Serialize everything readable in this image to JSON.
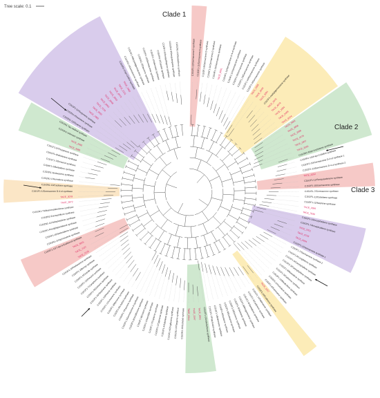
{
  "scale": {
    "label": "Tree scale: 0.1"
  },
  "colors": {
    "purple": "#d9ccec",
    "pink": "#f6c9c7",
    "green": "#cfe8cf",
    "orange": "#fbe6c6",
    "yellow": "#fcecb8",
    "highlight_text": "#e0245e",
    "normal_text": "#222222",
    "branch": "#555555"
  },
  "clade_labels": [
    "Clade 1",
    "Clade 2",
    "Clade 3"
  ],
  "leaves": [
    "C15/2F1-12/Germacrene D synthase",
    "C15/2F1-11/Germacrene A synthase",
    "C15/2F1-8/Germacrene D synthase",
    "C15/4F1-11/Germacrene D synthase",
    "C15/4F1-13/Germacrene synthase",
    "TACE_9061",
    "C15/4F1-12/Germacrene D-4-ol synthase",
    "C15/4F1-10/Germacrene synthase",
    "C15/2F1-3/Germacrene synthase",
    "C15/2F1-13/Germacrene synthase",
    "C15/2F1-14/Germacrene synthase",
    "C15/2F1-4/Germacrene synthase",
    "TACE_1088",
    "TACE_3049",
    "TACE_3261",
    "C15/1F1-methylgermacrene synthase",
    "TACE_3675",
    "TACE_4678",
    "TACE_1084",
    "TACE_5409",
    "TACE_8104",
    "TACE_3803",
    "TACE_3856",
    "TACE_2586",
    "TACE_4276",
    "TACE_1657",
    "TACE_3255",
    "C15/3N1-6/epi-isozizaene synthase",
    "C15/3N1-10/4-epi-Cubebol synthase",
    "C15/2F1-15/Germacrene D-4-ol synthase 1",
    "C15/2F1-11/Germacrene D-4-ol synthase 2",
    "TACE_4252",
    "C15/2F1-12/Sesquisabinene synthase",
    "C15/2F1-10/Germacrene synthase",
    "C15/2F1-7/Germacrene synthase",
    "C15/2F1-11/Cubebene synthase",
    "C15/2F1-12/Isoprene synthase",
    "TACE_3099",
    "TACE_7936",
    "C15/2F1-1/Amorphadiene synthase",
    "C15/2F1-7/Amorphadiene synthase",
    "TACE_3701",
    "TACE_6703",
    "TACE_6604",
    "C15/2F1-1/Germacrene synthase 1",
    "C15/1F1-7/Germacrene synthase 2",
    "C15/1F1-6/Longifolene synthase",
    "C15/1F1-4/Caryophyllene synthase",
    "C15/1F1-3/Caryophyllene synthase",
    "C15/1F1-9/Muurolene synthase",
    "C15/1F1-5/Cadinene synthase",
    "C15/2F1-13/Bisabolene synthase",
    "C15/2F1-1/Humulene synthase",
    "C15/2F1-6/Farnesene synthase",
    "TACE_1157",
    "C15/2F1-10/Cadinene synthase",
    "C15/1F1-10/Valencene synthase",
    "C15/1F1-3/Cadinene synthase",
    "C15/1F1-9/Santalene synthase",
    "C15/1F1-8/Bergamotene synthase",
    "C15/2F1-5/Selinene synthase",
    "C15/2F1-9/Elemene synthase",
    "C15/2F1-6/Eudesmol synthase",
    "C15/2F1-8/Guaiene synthase",
    "C15/1F1-1/Bulnesene synthase",
    "C15/2F1-7/Patchoulol synthase",
    "C15/2F1-2/Aristolochene synthase",
    "TACE_2061",
    "TACE_3347",
    "TACE_6344",
    "C15/2N1-10/Cubebol synthase",
    "C15/1N1-3/Ylangene synthase",
    "C15/2F1-4/Zingiberene synthase",
    "C15/2F1-4/Sabinene synthase",
    "C15/2F1-1/Cyperene synthase",
    "C15/2F1-7/Copaene synthase",
    "C15/2F1-1/Nerolidol synthase",
    "C15/2F1-6/Cedrol synthase",
    "C15/2F1-9/Viridiflorene synthase",
    "C15/2F1-5/Germacrene A synthase",
    "C15/2F1-7/Kaurene synthase",
    "C15/2F1-8/Linalool synthase",
    "C15/2F1-3/Myrcene synthase",
    "C15/2F1-11/Limonene synthase",
    "C15/2F1-13/Pinene synthase",
    "C15/2F1-10/Terpinene synthase",
    "C15/2F1-5/Ocimene synthase",
    "C15/2F1-7/Camphene synthase",
    "C15/2F1-12/Fenchol synthase",
    "C15/2F1-4/Cineole synthase",
    "C15/2F1-2/Bornyl synthase",
    "C15/2F1-3/Phellandrene synthase",
    "TACE_7078",
    "TACE_7137",
    "TACE_3025",
    "C15/2F1-10/7-epi-a-Eudesmol synthase",
    "C15/2N1-11/Spiroviolene synthase",
    "C15/2F1-10/Selinadiene synthase",
    "C15/2N1-Presilphiperfolanol synthase",
    "C15/2N1-11/Vetispiradiene synthase",
    "C15/2N1-Eremophilene synthase",
    "C15/2N1-7/Alloaromadendrene synthase",
    "TACE_2872",
    "TACE_3078",
    "C15/1F1-1/Germacrene D-4-ol synthase",
    "C15/2N1-10/Cedrene synthase",
    "C15/2N1-1/Humulene synthase",
    "C15/2N1-Isodaucene synthase",
    "C15/4F1-2/Barbatene synthase",
    "C15/1F1-1/Drimenol synthase",
    "C15/1F1-4/Ishwarane synthase",
    "C15/1F1-5/Thujopsene synthase",
    "TACE_3080",
    "TACE_2082",
    "C15/1N1-unknown synthase",
    "C15/1N1-Tau-cadinol synthase",
    "C15/2N1-12/Zizaene synthase",
    "C15/2N1-Khusimene synthase",
    "C15/2F1-12/Gurjunene synthase",
    "TACE_1983",
    "TACE_4093",
    "TACE_7120",
    "TACE_6861",
    "TACE_8048",
    "TACE_3062",
    "TACE_8079",
    "TACE_2131",
    "TACE_1963",
    "C15/2N1-1/epi-Cedrol synthase",
    "C15/1N1-2/Germacrene synthase",
    "C15/2F1-4/Bicyclogermacrene synthase",
    "C15/2N1-3/Daucene synthase",
    "C15/2F1-10/Germacrene synthase",
    "C15/2F1-1/Valerianol synthase",
    "C15/2N1-2/Copalol synthase",
    "C15/2F1-5/Sesquithujene synthase",
    "C15/2N1-9/Sesquiterpene synthase",
    "C15/2N1-13/Guaiadiene synthase"
  ]
}
